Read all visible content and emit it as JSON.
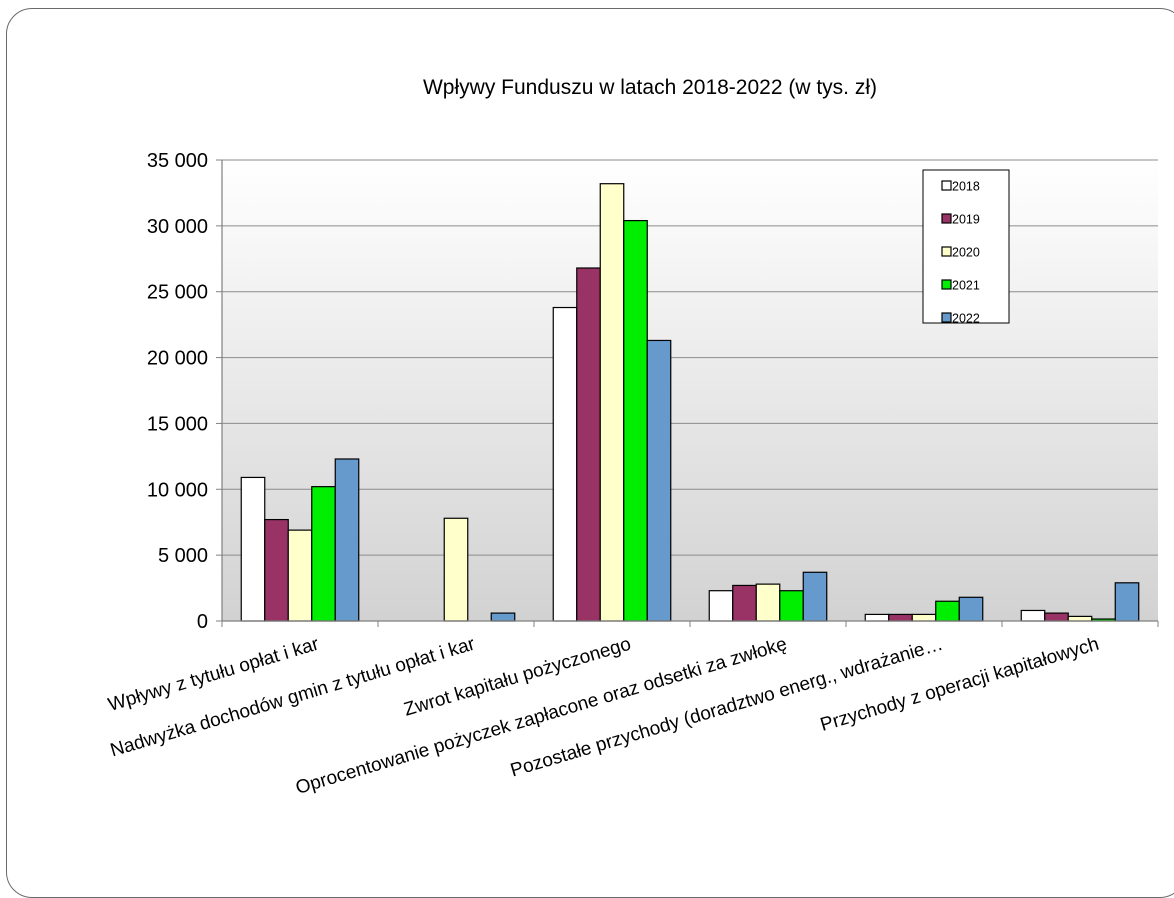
{
  "chart_data": {
    "type": "bar",
    "title": "Wpływy Funduszu w latach 2018-2022 (w tys. zł)",
    "xlabel": "",
    "ylabel": "",
    "ylim": [
      0,
      35000
    ],
    "yticks": [
      0,
      5000,
      10000,
      15000,
      20000,
      25000,
      30000,
      35000
    ],
    "ytick_labels": [
      "0",
      "5 000",
      "10 000",
      "15 000",
      "20 000",
      "25 000",
      "30 000",
      "35 000"
    ],
    "grid": true,
    "legend_position": "top-right",
    "categories": [
      "Wpływy z tytułu opłat i kar",
      "Nadwyżka dochodów gmin z tytułu opłat i kar",
      "Zwrot kapitału pożyczonego",
      "Oprocentowanie pożyczek  zapłacone oraz odsetki za zwłokę",
      "Pozostałe przychody  (doradztwo energ., wdrażanie…",
      "Przychody z operacji kapitałowych"
    ],
    "series": [
      {
        "name": "2018",
        "color": "#ffffff",
        "values": [
          10900,
          0,
          23800,
          2300,
          500,
          800
        ]
      },
      {
        "name": "2019",
        "color": "#993366",
        "values": [
          7700,
          0,
          26800,
          2700,
          500,
          600
        ]
      },
      {
        "name": "2020",
        "color": "#ffffcc",
        "values": [
          6900,
          7800,
          33200,
          2800,
          500,
          350
        ]
      },
      {
        "name": "2021",
        "color": "#00ee00",
        "values": [
          10200,
          0,
          30400,
          2300,
          1500,
          150
        ]
      },
      {
        "name": "2022",
        "color": "#6699cc",
        "values": [
          12300,
          600,
          21300,
          3700,
          1800,
          2900
        ]
      }
    ]
  }
}
